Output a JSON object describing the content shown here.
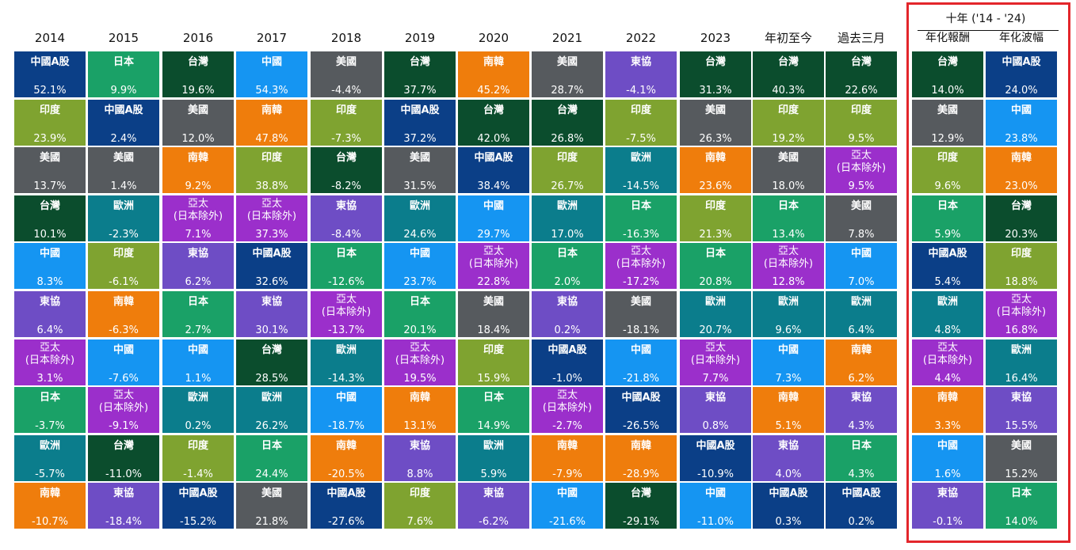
{
  "colors": {
    "中國A股": "#0b3f87",
    "日本": "#1aa167",
    "台灣": "#0b4d2d",
    "中國": "#1595f2",
    "美國": "#565a5e",
    "南韓": "#ef7d0c",
    "東協": "#6e4dc5",
    "印度": "#7fa330",
    "歐洲": "#0b7d8c",
    "亞太\n(日本除外)": "#9b2fcb"
  },
  "ten_year_title": "十年 ('14 - '24)",
  "chart_data": {
    "type": "table",
    "title": "",
    "columns": [
      {
        "label": "2014",
        "cells": [
          {
            "name": "中國A股",
            "value": "52.1%"
          },
          {
            "name": "印度",
            "value": "23.9%"
          },
          {
            "name": "美國",
            "value": "13.7%"
          },
          {
            "name": "台灣",
            "value": "10.1%"
          },
          {
            "name": "中國",
            "value": "8.3%"
          },
          {
            "name": "東協",
            "value": "6.4%"
          },
          {
            "name": "亞太\n(日本除外)",
            "value": "3.1%"
          },
          {
            "name": "日本",
            "value": "-3.7%"
          },
          {
            "name": "歐洲",
            "value": "-5.7%"
          },
          {
            "name": "南韓",
            "value": "-10.7%"
          }
        ]
      },
      {
        "label": "2015",
        "cells": [
          {
            "name": "日本",
            "value": "9.9%"
          },
          {
            "name": "中國A股",
            "value": "2.4%"
          },
          {
            "name": "美國",
            "value": "1.4%"
          },
          {
            "name": "歐洲",
            "value": "-2.3%"
          },
          {
            "name": "印度",
            "value": "-6.1%"
          },
          {
            "name": "南韓",
            "value": "-6.3%"
          },
          {
            "name": "中國",
            "value": "-7.6%"
          },
          {
            "name": "亞太\n(日本除外)",
            "value": "-9.1%"
          },
          {
            "name": "台灣",
            "value": "-11.0%"
          },
          {
            "name": "東協",
            "value": "-18.4%"
          }
        ]
      },
      {
        "label": "2016",
        "cells": [
          {
            "name": "台灣",
            "value": "19.6%"
          },
          {
            "name": "美國",
            "value": "12.0%"
          },
          {
            "name": "南韓",
            "value": "9.2%"
          },
          {
            "name": "亞太\n(日本除外)",
            "value": "7.1%"
          },
          {
            "name": "東協",
            "value": "6.2%"
          },
          {
            "name": "日本",
            "value": "2.7%"
          },
          {
            "name": "中國",
            "value": "1.1%"
          },
          {
            "name": "歐洲",
            "value": "0.2%"
          },
          {
            "name": "印度",
            "value": "-1.4%"
          },
          {
            "name": "中國A股",
            "value": "-15.2%"
          }
        ]
      },
      {
        "label": "2017",
        "cells": [
          {
            "name": "中國",
            "value": "54.3%"
          },
          {
            "name": "南韓",
            "value": "47.8%"
          },
          {
            "name": "印度",
            "value": "38.8%"
          },
          {
            "name": "亞太\n(日本除外)",
            "value": "37.3%"
          },
          {
            "name": "中國A股",
            "value": "32.6%"
          },
          {
            "name": "東協",
            "value": "30.1%"
          },
          {
            "name": "台灣",
            "value": "28.5%"
          },
          {
            "name": "歐洲",
            "value": "26.2%"
          },
          {
            "name": "日本",
            "value": "24.4%"
          },
          {
            "name": "美國",
            "value": "21.8%"
          }
        ]
      },
      {
        "label": "2018",
        "cells": [
          {
            "name": "美國",
            "value": "-4.4%"
          },
          {
            "name": "印度",
            "value": "-7.3%"
          },
          {
            "name": "台灣",
            "value": "-8.2%"
          },
          {
            "name": "東協",
            "value": "-8.4%"
          },
          {
            "name": "日本",
            "value": "-12.6%"
          },
          {
            "name": "亞太\n(日本除外)",
            "value": "-13.7%"
          },
          {
            "name": "歐洲",
            "value": "-14.3%"
          },
          {
            "name": "中國",
            "value": "-18.7%"
          },
          {
            "name": "南韓",
            "value": "-20.5%"
          },
          {
            "name": "中國A股",
            "value": "-27.6%"
          }
        ]
      },
      {
        "label": "2019",
        "cells": [
          {
            "name": "台灣",
            "value": "37.7%"
          },
          {
            "name": "中國A股",
            "value": "37.2%"
          },
          {
            "name": "美國",
            "value": "31.5%"
          },
          {
            "name": "歐洲",
            "value": "24.6%"
          },
          {
            "name": "中國",
            "value": "23.7%"
          },
          {
            "name": "日本",
            "value": "20.1%"
          },
          {
            "name": "亞太\n(日本除外)",
            "value": "19.5%"
          },
          {
            "name": "南韓",
            "value": "13.1%"
          },
          {
            "name": "東協",
            "value": "8.8%"
          },
          {
            "name": "印度",
            "value": "7.6%"
          }
        ]
      },
      {
        "label": "2020",
        "cells": [
          {
            "name": "南韓",
            "value": "45.2%"
          },
          {
            "name": "台灣",
            "value": "42.0%"
          },
          {
            "name": "中國A股",
            "value": "38.4%"
          },
          {
            "name": "中國",
            "value": "29.7%"
          },
          {
            "name": "亞太\n(日本除外)",
            "value": "22.8%"
          },
          {
            "name": "美國",
            "value": "18.4%"
          },
          {
            "name": "印度",
            "value": "15.9%"
          },
          {
            "name": "日本",
            "value": "14.9%"
          },
          {
            "name": "歐洲",
            "value": "5.9%"
          },
          {
            "name": "東協",
            "value": "-6.2%"
          }
        ]
      },
      {
        "label": "2021",
        "cells": [
          {
            "name": "美國",
            "value": "28.7%"
          },
          {
            "name": "台灣",
            "value": "26.8%"
          },
          {
            "name": "印度",
            "value": "26.7%"
          },
          {
            "name": "歐洲",
            "value": "17.0%"
          },
          {
            "name": "日本",
            "value": "2.0%"
          },
          {
            "name": "東協",
            "value": "0.2%"
          },
          {
            "name": "中國A股",
            "value": "-1.0%"
          },
          {
            "name": "亞太\n(日本除外)",
            "value": "-2.7%"
          },
          {
            "name": "南韓",
            "value": "-7.9%"
          },
          {
            "name": "中國",
            "value": "-21.6%"
          }
        ]
      },
      {
        "label": "2022",
        "cells": [
          {
            "name": "東協",
            "value": "-4.1%"
          },
          {
            "name": "印度",
            "value": "-7.5%"
          },
          {
            "name": "歐洲",
            "value": "-14.5%"
          },
          {
            "name": "日本",
            "value": "-16.3%"
          },
          {
            "name": "亞太\n(日本除外)",
            "value": "-17.2%"
          },
          {
            "name": "美國",
            "value": "-18.1%"
          },
          {
            "name": "中國",
            "value": "-21.8%"
          },
          {
            "name": "中國A股",
            "value": "-26.5%"
          },
          {
            "name": "南韓",
            "value": "-28.9%"
          },
          {
            "name": "台灣",
            "value": "-29.1%"
          }
        ]
      },
      {
        "label": "2023",
        "cells": [
          {
            "name": "台灣",
            "value": "31.3%"
          },
          {
            "name": "美國",
            "value": "26.3%"
          },
          {
            "name": "南韓",
            "value": "23.6%"
          },
          {
            "name": "印度",
            "value": "21.3%"
          },
          {
            "name": "日本",
            "value": "20.8%"
          },
          {
            "name": "歐洲",
            "value": "20.7%"
          },
          {
            "name": "亞太\n(日本除外)",
            "value": "7.7%"
          },
          {
            "name": "東協",
            "value": "0.8%"
          },
          {
            "name": "中國A股",
            "value": "-10.9%"
          },
          {
            "name": "中國",
            "value": "-11.0%"
          }
        ]
      },
      {
        "label": "年初至今",
        "cells": [
          {
            "name": "台灣",
            "value": "40.3%"
          },
          {
            "name": "印度",
            "value": "19.2%"
          },
          {
            "name": "美國",
            "value": "18.0%"
          },
          {
            "name": "日本",
            "value": "13.4%"
          },
          {
            "name": "亞太\n(日本除外)",
            "value": "12.8%"
          },
          {
            "name": "歐洲",
            "value": "9.6%"
          },
          {
            "name": "中國",
            "value": "7.3%"
          },
          {
            "name": "南韓",
            "value": "5.1%"
          },
          {
            "name": "東協",
            "value": "4.0%"
          },
          {
            "name": "中國A股",
            "value": "0.3%"
          }
        ]
      },
      {
        "label": "過去三月",
        "cells": [
          {
            "name": "台灣",
            "value": "22.6%"
          },
          {
            "name": "印度",
            "value": "9.5%"
          },
          {
            "name": "亞太\n(日本除外)",
            "value": "9.5%"
          },
          {
            "name": "美國",
            "value": "7.8%"
          },
          {
            "name": "中國",
            "value": "7.0%"
          },
          {
            "name": "歐洲",
            "value": "6.4%"
          },
          {
            "name": "南韓",
            "value": "6.2%"
          },
          {
            "name": "東協",
            "value": "4.3%"
          },
          {
            "name": "日本",
            "value": "4.3%"
          },
          {
            "name": "中國A股",
            "value": "0.2%"
          }
        ]
      },
      {
        "label": "年化報酬",
        "cells": [
          {
            "name": "台灣",
            "value": "14.0%"
          },
          {
            "name": "美國",
            "value": "12.9%"
          },
          {
            "name": "印度",
            "value": "9.6%"
          },
          {
            "name": "日本",
            "value": "5.9%"
          },
          {
            "name": "中國A股",
            "value": "5.4%"
          },
          {
            "name": "歐洲",
            "value": "4.8%"
          },
          {
            "name": "亞太\n(日本除外)",
            "value": "4.4%"
          },
          {
            "name": "南韓",
            "value": "3.3%"
          },
          {
            "name": "中國",
            "value": "1.6%"
          },
          {
            "name": "東協",
            "value": "-0.1%"
          }
        ]
      },
      {
        "label": "年化波幅",
        "cells": [
          {
            "name": "中國A股",
            "value": "24.0%"
          },
          {
            "name": "中國",
            "value": "23.8%"
          },
          {
            "name": "南韓",
            "value": "23.0%"
          },
          {
            "name": "台灣",
            "value": "20.3%"
          },
          {
            "name": "印度",
            "value": "18.8%"
          },
          {
            "name": "亞太\n(日本除外)",
            "value": "16.8%"
          },
          {
            "name": "歐洲",
            "value": "16.4%"
          },
          {
            "name": "東協",
            "value": "15.5%"
          },
          {
            "name": "美國",
            "value": "15.2%"
          },
          {
            "name": "日本",
            "value": "14.0%"
          }
        ]
      }
    ]
  }
}
